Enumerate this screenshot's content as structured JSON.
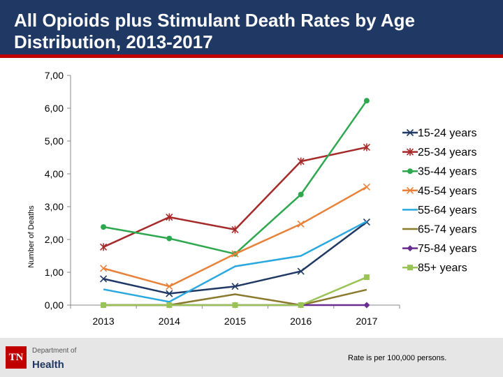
{
  "header": {
    "title": "All Opioids plus Stimulant Death Rates by Age Distribution, 2013-2017"
  },
  "footer": {
    "logo_mark": "TN",
    "logo_dept": "Department of",
    "logo_health": "Health",
    "note": "Rate is per 100,000 persons."
  },
  "chart_data": {
    "type": "line",
    "title": "All Opioids plus Stimulant Death Rates by Age Distribution, 2013-2017",
    "xlabel": "",
    "ylabel": "Number of Deaths",
    "x": [
      "2013",
      "2014",
      "2015",
      "2016",
      "2017"
    ],
    "ylim": [
      0,
      7
    ],
    "yticks": [
      0,
      1,
      2,
      3,
      4,
      5,
      6,
      7
    ],
    "ytick_labels": [
      "0,00",
      "1,00",
      "2,00",
      "3,00",
      "4,00",
      "5,00",
      "6,00",
      "7,00"
    ],
    "grid": false,
    "legend_position": "right",
    "series": [
      {
        "name": "15-24 years",
        "color": "#1f3864",
        "marker": "x",
        "values": [
          0.8,
          0.35,
          0.57,
          1.03,
          2.53
        ]
      },
      {
        "name": "25-34 years",
        "color": "#a52a2a",
        "marker": "asterisk",
        "values": [
          1.77,
          2.68,
          2.3,
          4.38,
          4.81
        ]
      },
      {
        "name": "35-44 years",
        "color": "#2ea84f",
        "marker": "circle",
        "values": [
          2.38,
          2.03,
          1.56,
          3.37,
          6.23
        ]
      },
      {
        "name": "45-54 years",
        "color": "#e8823a",
        "marker": "x",
        "values": [
          1.12,
          0.57,
          1.56,
          2.47,
          3.6
        ]
      },
      {
        "name": "55-64 years",
        "color": "#29a8e0",
        "marker": "none",
        "values": [
          0.48,
          0.1,
          1.18,
          1.5,
          2.55
        ]
      },
      {
        "name": "65-74 years",
        "color": "#8b7a2e",
        "marker": "none",
        "values": [
          0.0,
          0.0,
          0.33,
          0.0,
          0.47
        ]
      },
      {
        "name": "75-84 years",
        "color": "#6a2d91",
        "marker": "diamond",
        "values": [
          0.0,
          0.0,
          0.0,
          0.0,
          0.0
        ]
      },
      {
        "name": "85+ years",
        "color": "#9ac356",
        "marker": "square",
        "values": [
          0.0,
          0.0,
          0.0,
          0.0,
          0.85
        ]
      }
    ]
  }
}
